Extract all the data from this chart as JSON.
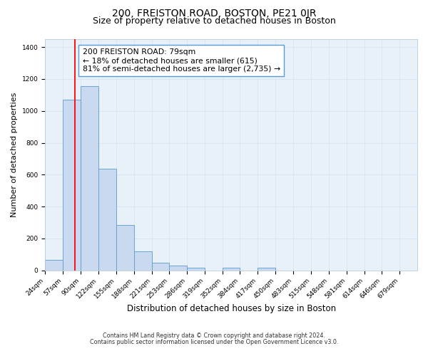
{
  "title": "200, FREISTON ROAD, BOSTON, PE21 0JR",
  "subtitle": "Size of property relative to detached houses in Boston",
  "xlabel": "Distribution of detached houses by size in Boston",
  "ylabel": "Number of detached properties",
  "footnote1": "Contains HM Land Registry data © Crown copyright and database right 2024.",
  "footnote2": "Contains public sector information licensed under the Open Government Licence v3.0.",
  "bar_edges": [
    24,
    57,
    90,
    122,
    155,
    188,
    221,
    253,
    286,
    319,
    352,
    384,
    417,
    450,
    483,
    515,
    548,
    581,
    614,
    646,
    679
  ],
  "bar_heights": [
    65,
    1070,
    1155,
    635,
    285,
    120,
    48,
    28,
    15,
    0,
    15,
    0,
    15,
    0,
    0,
    0,
    0,
    0,
    0,
    0
  ],
  "bar_color": "#c9d9ef",
  "bar_edge_color": "#5b9bd5",
  "red_line_x": 79,
  "ylim": [
    0,
    1450
  ],
  "yticks": [
    0,
    200,
    400,
    600,
    800,
    1000,
    1200,
    1400
  ],
  "xtick_labels": [
    "24sqm",
    "57sqm",
    "90sqm",
    "122sqm",
    "155sqm",
    "188sqm",
    "221sqm",
    "253sqm",
    "286sqm",
    "319sqm",
    "352sqm",
    "384sqm",
    "417sqm",
    "450sqm",
    "483sqm",
    "515sqm",
    "548sqm",
    "581sqm",
    "614sqm",
    "646sqm",
    "679sqm"
  ],
  "annotation_text": "200 FREISTON ROAD: 79sqm\n← 18% of detached houses are smaller (615)\n81% of semi-detached houses are larger (2,735) →",
  "annotation_box_color": "#ffffff",
  "annotation_box_edge": "#5b9bd5",
  "grid_color": "#d8e6f3",
  "bg_color": "#e8f0f8",
  "title_fontsize": 10,
  "subtitle_fontsize": 9,
  "annot_fontsize": 7.8,
  "tick_fontsize": 6.5,
  "ylabel_fontsize": 8,
  "xlabel_fontsize": 8.5,
  "footnote_fontsize": 5.8
}
